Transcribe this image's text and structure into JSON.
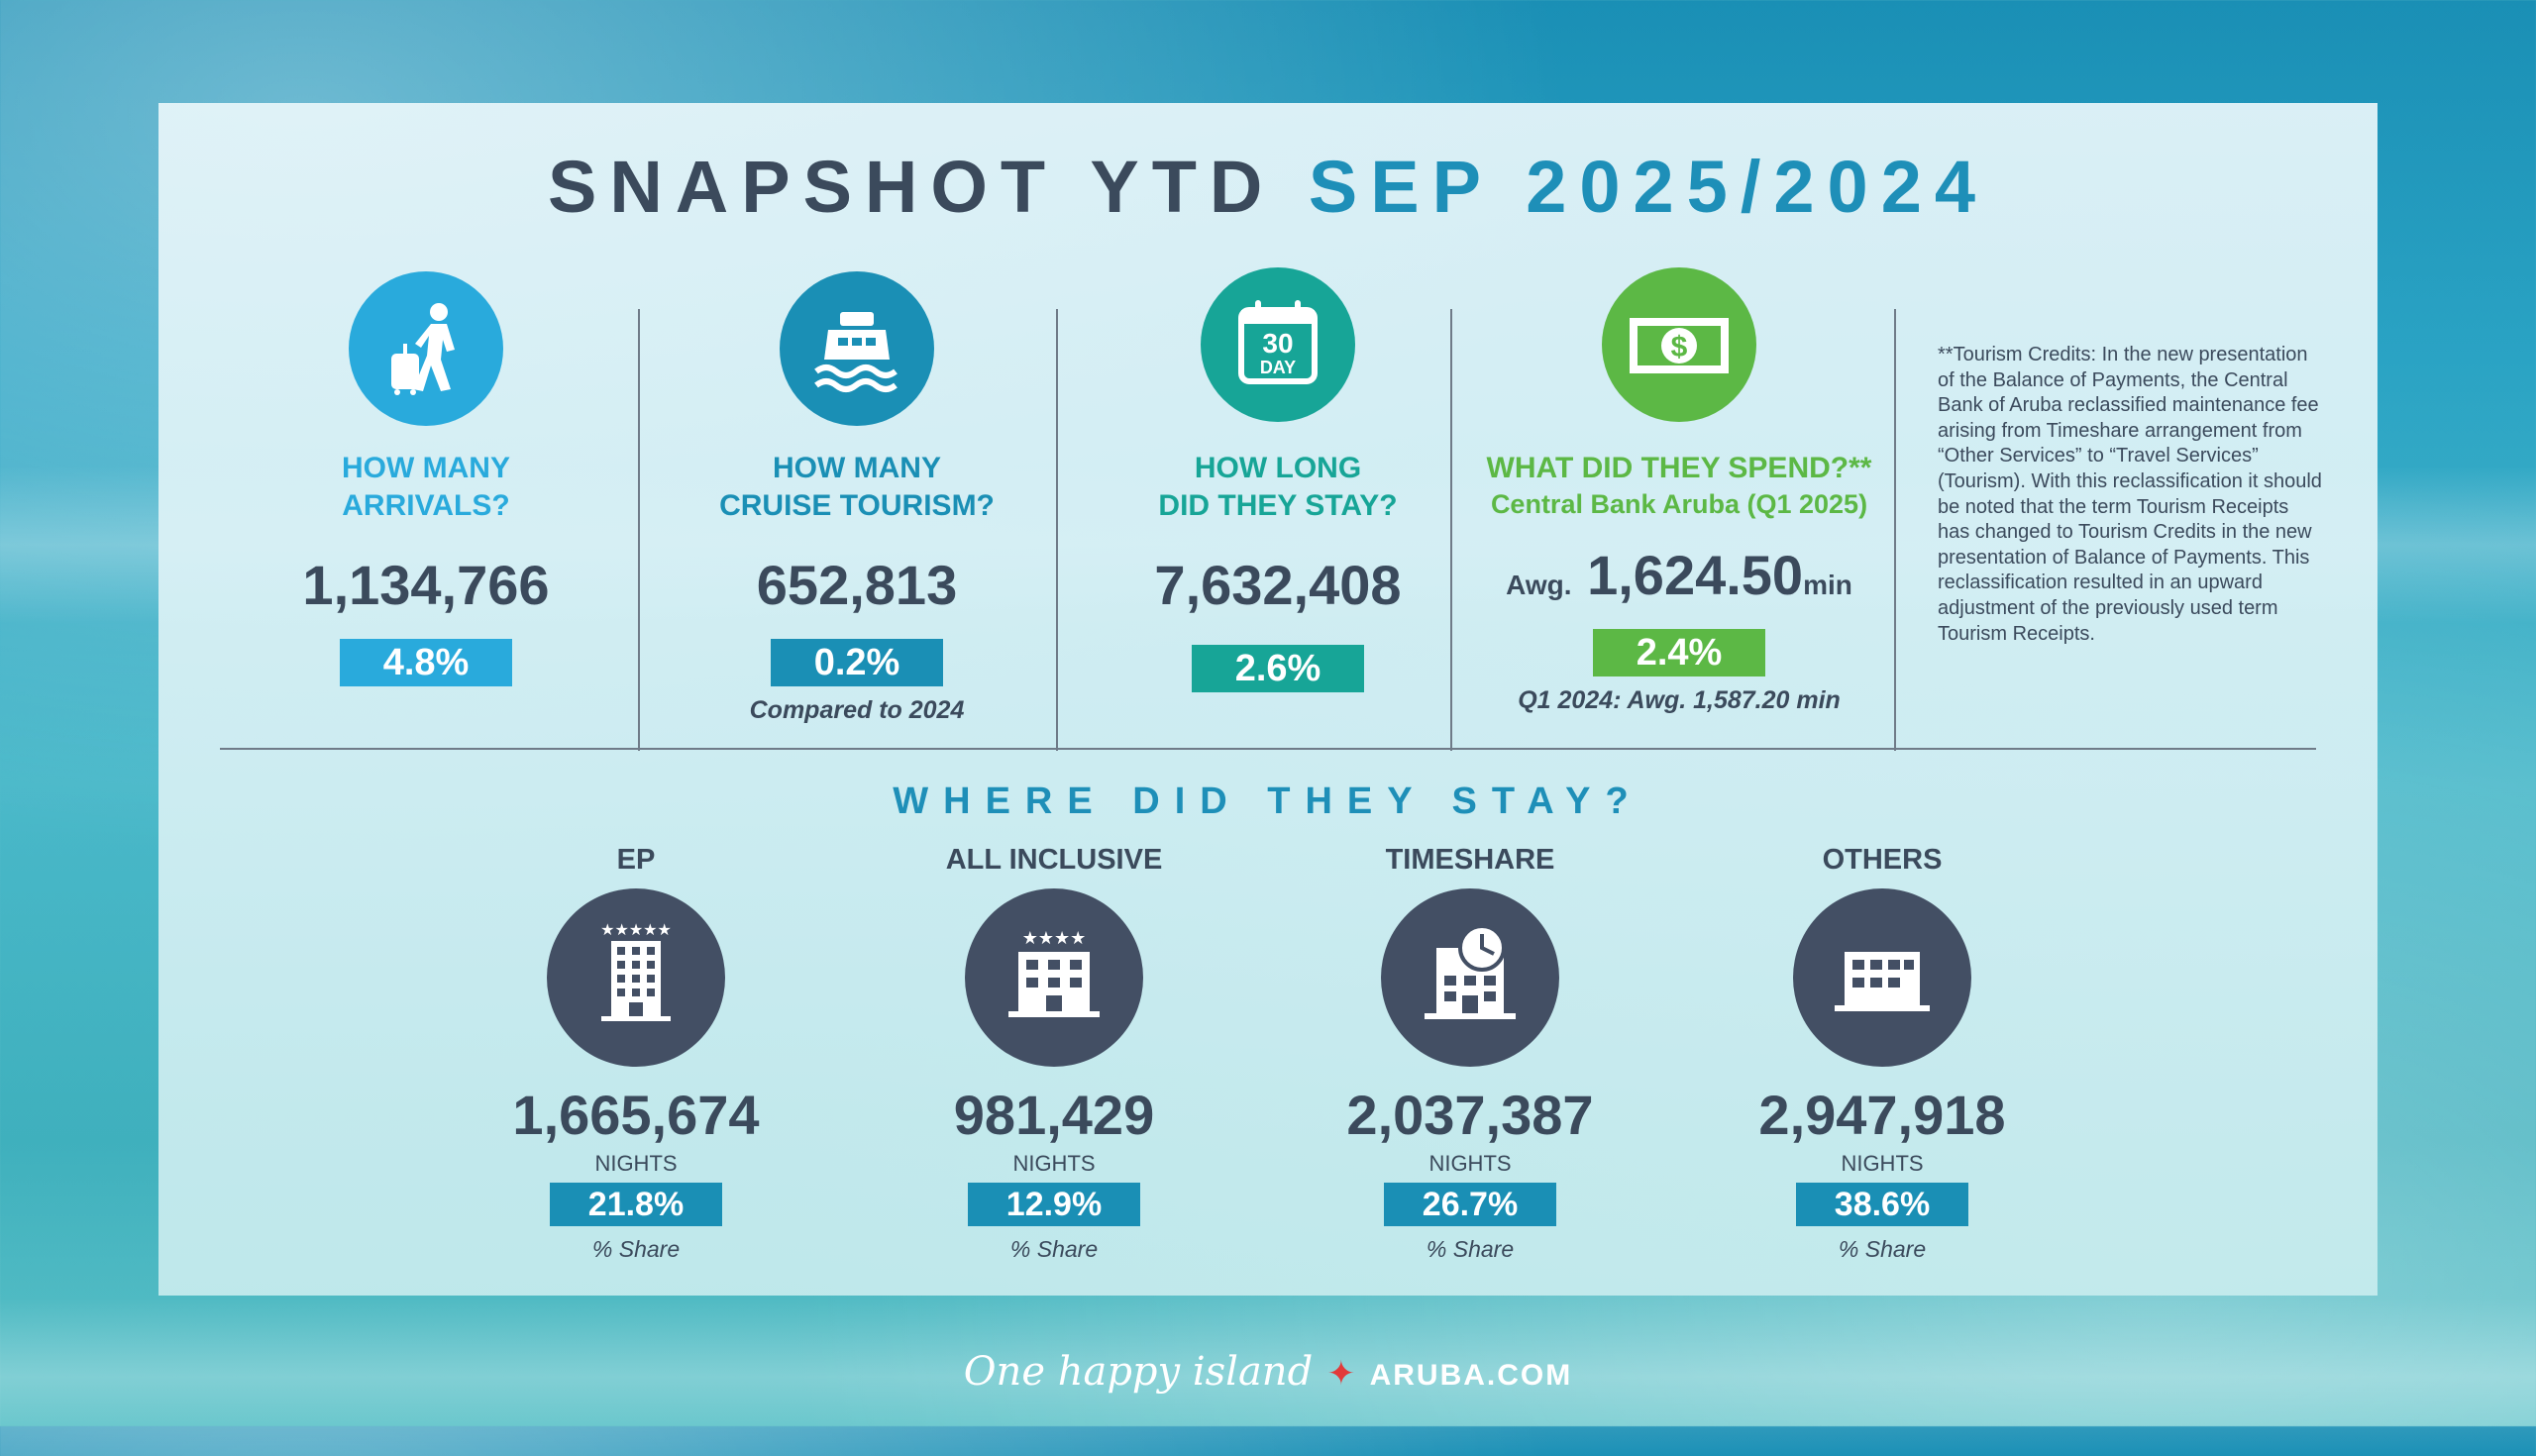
{
  "title": {
    "part1": "SNAPSHOT YTD",
    "part2": "SEP 2025/2024"
  },
  "stats": {
    "arrivals": {
      "question_line1": "HOW MANY",
      "question_line2": "ARRIVALS?",
      "value": "1,134,766",
      "pct": "4.8%",
      "color": "#29aadc"
    },
    "cruise": {
      "question_line1": "HOW MANY",
      "question_line2": "CRUISE TOURISM?",
      "value": "652,813",
      "pct": "0.2%",
      "note": "Compared to 2024",
      "color": "#1a8fb5"
    },
    "stay": {
      "question_line1": "HOW LONG",
      "question_line2": "DID THEY STAY?",
      "value": "7,632,408",
      "pct": "2.6%",
      "calendar_number": "30",
      "calendar_label": "DAY",
      "color": "#17a597"
    },
    "spend": {
      "question_line1": "WHAT DID THEY SPEND?**",
      "question_line2": "Central Bank Aruba (Q1 2025)",
      "prefix": "Awg.",
      "value": "1,624.50",
      "suffix": "min",
      "pct": "2.4%",
      "note": "Q1 2024: Awg. 1,587.20 min",
      "color": "#5cb845"
    }
  },
  "credits_note": "**Tourism Credits: In the new presentation of the Balance of Payments, the Central Bank of Aruba reclassified maintenance fee arising from Timeshare arrangement from “Other Services” to “Travel Services” (Tourism). With this reclassification it should be noted that the term Tourism Receipts has changed to Tourism Credits in the new presentation of Balance of Payments. This reclassification resulted in an upward adjustment of the previously used term Tourism Receipts.",
  "where": {
    "heading": "WHERE DID THEY STAY?",
    "items": [
      {
        "label": "EP",
        "value": "1,665,674",
        "unit": "NIGHTS",
        "pct": "21.8%",
        "share_label": "% Share",
        "icon": "hotel-5-star-icon"
      },
      {
        "label": "ALL INCLUSIVE",
        "value": "981,429",
        "unit": "NIGHTS",
        "pct": "12.9%",
        "share_label": "% Share",
        "icon": "hotel-4-star-icon"
      },
      {
        "label": "TIMESHARE",
        "value": "2,037,387",
        "unit": "NIGHTS",
        "pct": "26.7%",
        "share_label": "% Share",
        "icon": "hotel-clock-icon"
      },
      {
        "label": "OTHERS",
        "value": "2,947,918",
        "unit": "NIGHTS",
        "pct": "38.6%",
        "share_label": "% Share",
        "icon": "building-icon"
      }
    ]
  },
  "footer": {
    "slogan": "One happy island",
    "brand": "ARUBA.COM"
  }
}
